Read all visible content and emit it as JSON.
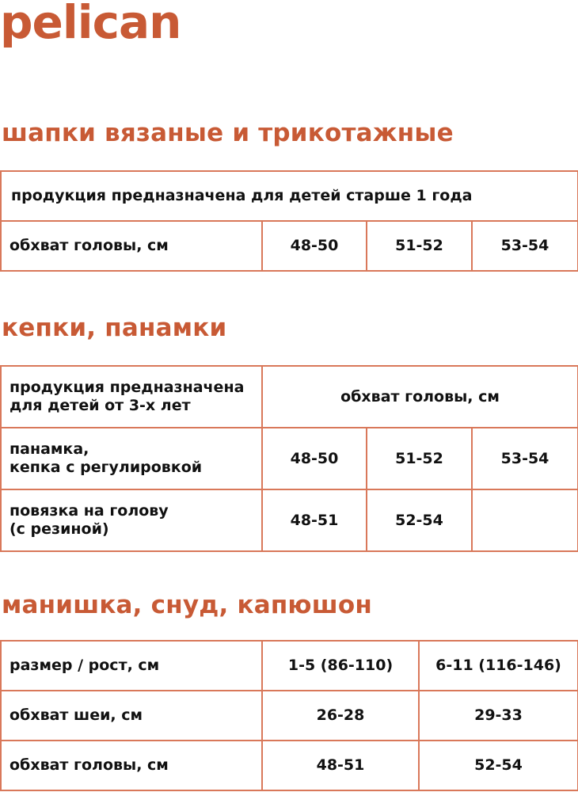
{
  "brand": {
    "logo": "pelican",
    "color": "#c85a35",
    "border_color": "#d9785a"
  },
  "sections": [
    {
      "title": "шапки вязаные и трикотажные",
      "note": "продукция предназначена для детей старше 1 года",
      "row_label": "обхват головы, см",
      "values": [
        "48-50",
        "51-52",
        "53-54"
      ]
    },
    {
      "title": "кепки, панамки",
      "header_label": [
        "продукция предназначена",
        "для детей от 3-х лет"
      ],
      "header_value": "обхват головы, см",
      "rows": [
        {
          "label": [
            "панамка,",
            "кепка с регулировкой"
          ],
          "values": [
            "48-50",
            "51-52",
            "53-54"
          ]
        },
        {
          "label": [
            "повязка на голову",
            "(с резиной)"
          ],
          "values": [
            "48-51",
            "52-54",
            ""
          ]
        }
      ]
    },
    {
      "title": "манишка, снуд, капюшон",
      "rows": [
        {
          "label": "размер / рост, см",
          "values": [
            "1-5 (86-110)",
            "6-11 (116-146)"
          ]
        },
        {
          "label": "обхват шеи, см",
          "values": [
            "26-28",
            "29-33"
          ]
        },
        {
          "label": "обхват головы, см",
          "values": [
            "48-51",
            "52-54"
          ]
        }
      ]
    }
  ]
}
